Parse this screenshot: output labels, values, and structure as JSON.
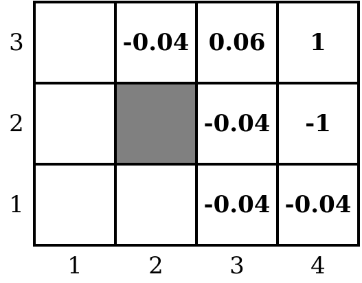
{
  "grid": {
    "rows": [
      "3",
      "2",
      "1"
    ],
    "columns": [
      "1",
      "2",
      "3",
      "4"
    ],
    "cells": [
      [
        "",
        "-0.04",
        "0.06",
        "1"
      ],
      [
        "",
        "",
        "-0.04",
        "-1"
      ],
      [
        "",
        "",
        "-0.04",
        "-0.04"
      ]
    ],
    "blocked": [
      [
        1,
        1
      ]
    ],
    "colors": {
      "blocked_fill": "#808080",
      "line": "#000000",
      "background": "#ffffff"
    }
  }
}
